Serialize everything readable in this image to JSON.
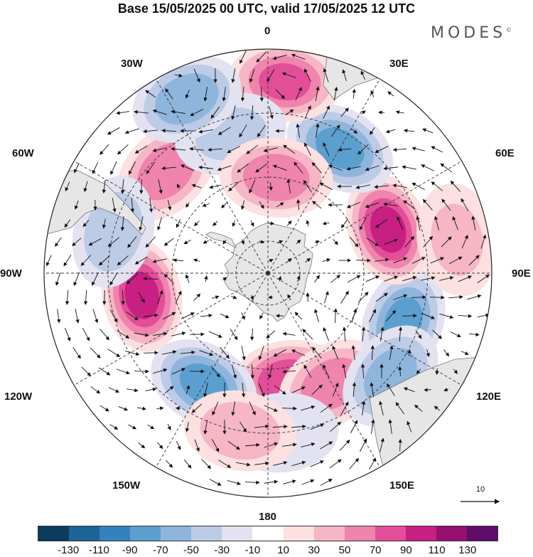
{
  "title": "Base 15/05/2025 00 UTC, valid 17/05/2025 12 UTC",
  "brand": "MODES",
  "brand_mark": "©",
  "longitude_labels": {
    "top": "0",
    "top_left": "30W",
    "top_right": "30E",
    "upper_left": "60W",
    "upper_right": "60E",
    "left": "90W",
    "right": "90E",
    "lower_left": "120W",
    "lower_right": "120E",
    "bottom_left": "150W",
    "bottom_right": "150E",
    "bottom": "180"
  },
  "reference_vector_label": "10",
  "colorbar": {
    "ticks": [
      "-130",
      "-110",
      "-90",
      "-70",
      "-50",
      "-30",
      "-10",
      "10",
      "30",
      "50",
      "70",
      "90",
      "110",
      "130"
    ],
    "colors": [
      "#0b3c5d",
      "#1c6396",
      "#3283bd",
      "#5b9fcf",
      "#8eb6dd",
      "#bccbe6",
      "#e3e2f1",
      "#ffffff",
      "#fde0e0",
      "#f6b6c6",
      "#ef84ad",
      "#e24f98",
      "#c81f83",
      "#96106f",
      "#5e0d6a"
    ]
  },
  "map": {
    "projection": "south polar stereographic",
    "land_color": "#e6e6e6",
    "anomaly_centers": [
      {
        "lon": -100,
        "lat": -50,
        "value": 90
      },
      {
        "lon": 170,
        "lat": -56,
        "value": 80
      },
      {
        "lon": 150,
        "lat": -50,
        "value": 60
      },
      {
        "lon": 110,
        "lat": -45,
        "value": -70
      },
      {
        "lon": 130,
        "lat": -40,
        "value": -55
      },
      {
        "lon": -150,
        "lat": -50,
        "value": -70
      },
      {
        "lon": 70,
        "lat": -50,
        "value": 90
      },
      {
        "lon": 30,
        "lat": -45,
        "value": -70
      },
      {
        "lon": 5,
        "lat": -30,
        "value": 70
      },
      {
        "lon": -45,
        "lat": -45,
        "value": 60
      },
      {
        "lon": -15,
        "lat": -45,
        "value": -30
      },
      {
        "lon": -25,
        "lat": -30,
        "value": -60
      },
      {
        "lon": 5,
        "lat": -60,
        "value": 60
      },
      {
        "lon": -75,
        "lat": -40,
        "value": -40
      },
      {
        "lon": 175,
        "lat": -40,
        "value": -20
      },
      {
        "lon": -170,
        "lat": -40,
        "value": 40
      },
      {
        "lon": 80,
        "lat": -30,
        "value": 30
      }
    ]
  }
}
